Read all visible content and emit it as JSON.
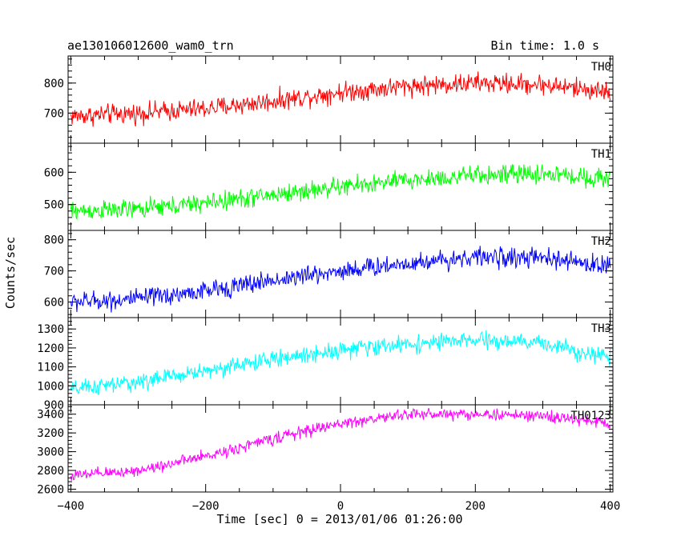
{
  "header": {
    "title": "ae130106012600_wam0_trn",
    "bin_time": "Bin time: 1.0 s"
  },
  "chart_data": {
    "type": "line",
    "xlabel": "Time [sec] 0 = 2013/01/06 01:26:00",
    "ylabel": "Counts/sec",
    "xlim": [
      -404,
      404
    ],
    "x_ticks": [
      -400,
      -200,
      0,
      200,
      400
    ],
    "x_tick_labels": [
      "−400",
      "−200",
      "0",
      "200",
      "400"
    ],
    "x_range": [
      -400,
      400
    ],
    "x_step": 1.0,
    "panels": [
      {
        "name": "TH0",
        "color": "#ff0000",
        "ylim": [
          600,
          890
        ],
        "y_ticks": [
          700,
          800
        ],
        "y_tick_labels": [
          "700",
          "800"
        ],
        "trend_x": [
          -400,
          -300,
          -200,
          -100,
          0,
          100,
          200,
          300,
          400
        ],
        "trend_y": [
          690,
          700,
          715,
          740,
          770,
          790,
          800,
          795,
          770
        ],
        "noise": 45
      },
      {
        "name": "TH1",
        "color": "#00ff00",
        "ylim": [
          420,
          690
        ],
        "y_ticks": [
          500,
          600
        ],
        "y_tick_labels": [
          "500",
          "600"
        ],
        "trend_x": [
          -400,
          -300,
          -200,
          -100,
          0,
          100,
          200,
          300,
          400
        ],
        "trend_y": [
          480,
          485,
          505,
          530,
          555,
          575,
          590,
          595,
          580
        ],
        "noise": 40
      },
      {
        "name": "TH2",
        "color": "#0000ff",
        "ylim": [
          550,
          830
        ],
        "y_ticks": [
          600,
          700,
          800
        ],
        "y_tick_labels": [
          "600",
          "700",
          "800"
        ],
        "trend_x": [
          -400,
          -300,
          -200,
          -100,
          0,
          100,
          200,
          300,
          400
        ],
        "trend_y": [
          600,
          610,
          635,
          670,
          700,
          725,
          745,
          740,
          715
        ],
        "noise": 42
      },
      {
        "name": "TH3",
        "color": "#00ffff",
        "ylim": [
          900,
          1360
        ],
        "y_ticks": [
          900,
          1000,
          1100,
          1200,
          1300
        ],
        "y_tick_labels": [
          "900",
          "1000",
          "1100",
          "1200",
          "1300"
        ],
        "trend_x": [
          -400,
          -300,
          -200,
          -100,
          0,
          100,
          200,
          300,
          400
        ],
        "trend_y": [
          980,
          1020,
          1080,
          1140,
          1190,
          1220,
          1240,
          1225,
          1150
        ],
        "noise": 60
      },
      {
        "name": "TH0123",
        "color": "#ff00ff",
        "ylim": [
          2570,
          3500
        ],
        "y_ticks": [
          2600,
          2800,
          3000,
          3200,
          3400
        ],
        "y_tick_labels": [
          "2600",
          "2800",
          "3000",
          "3200",
          "3400"
        ],
        "trend_x": [
          -400,
          -300,
          -200,
          -100,
          0,
          100,
          200,
          300,
          400
        ],
        "trend_y": [
          2740,
          2800,
          2950,
          3140,
          3300,
          3400,
          3400,
          3380,
          3300
        ],
        "noise": 85
      }
    ]
  }
}
